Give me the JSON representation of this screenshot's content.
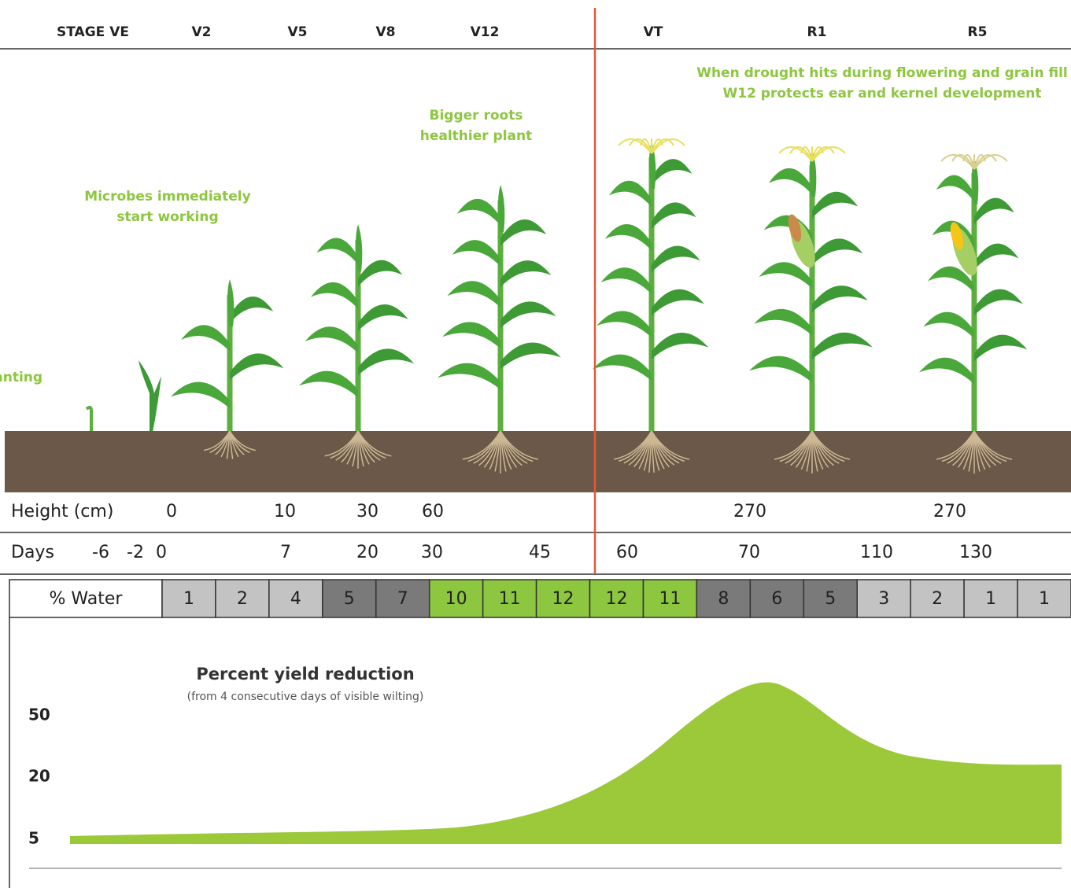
{
  "stages": [
    "STAGE VE",
    "V2",
    "V5",
    "V8",
    "V12",
    "VT",
    "R1",
    "R5"
  ],
  "annotations": [
    {
      "lines": [
        "Planting"
      ]
    },
    {
      "lines": [
        "Microbes immediately",
        "start working"
      ]
    },
    {
      "lines": [
        "Bigger roots",
        "healthier plant"
      ]
    },
    {
      "lines": [
        "When drought hits during flowering and grain fill",
        "W12 protects ear and kernel development"
      ]
    }
  ],
  "height": {
    "label": "Height (cm)",
    "values": [
      0,
      10,
      30,
      60,
      270,
      270
    ]
  },
  "days": {
    "label": "Days",
    "values": [
      -6,
      -2,
      0,
      7,
      20,
      30,
      45,
      60,
      70,
      110,
      130
    ]
  },
  "water": {
    "label": "% Water",
    "values": [
      1,
      2,
      4,
      5,
      7,
      10,
      11,
      12,
      12,
      11,
      8,
      6,
      5,
      3,
      2,
      1,
      1
    ],
    "colors": [
      "#c3c3c3",
      "#c3c3c3",
      "#c3c3c3",
      "#7a7a7a",
      "#7a7a7a",
      "#8dc63f",
      "#8dc63f",
      "#8dc63f",
      "#8dc63f",
      "#8dc63f",
      "#7a7a7a",
      "#7a7a7a",
      "#7a7a7a",
      "#c3c3c3",
      "#c3c3c3",
      "#c3c3c3",
      "#c3c3c3"
    ]
  },
  "yield": {
    "title": "Percent yield reduction",
    "subtitle": "(from 4 consecutive days of visible wilting)",
    "ticks": [
      50,
      20,
      5
    ]
  }
}
